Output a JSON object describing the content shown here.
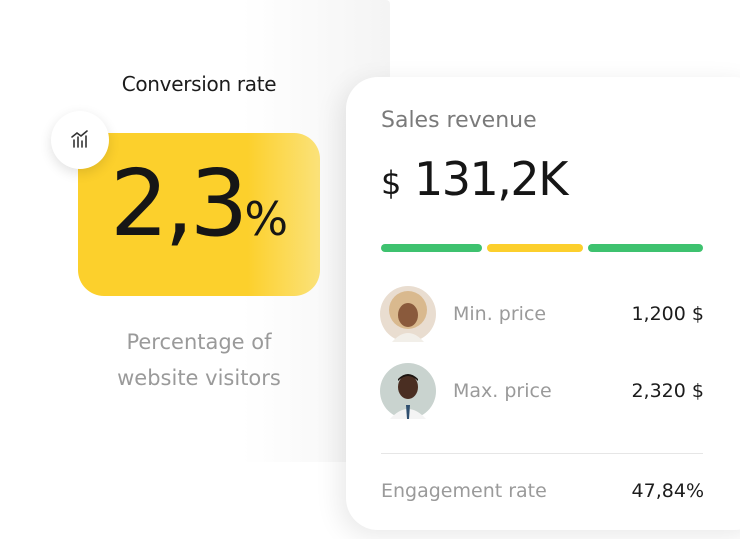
{
  "conversion_card": {
    "title": "Conversion rate",
    "value": "2,3",
    "unit": "%",
    "subtitle_lines": [
      "Percentage of",
      "website visitors"
    ]
  },
  "revenue_card": {
    "title": "Sales revenue",
    "currency": "$",
    "amount": "131,2K",
    "rows": [
      {
        "label": "Min. price",
        "value": "1,200 $"
      },
      {
        "label": "Max. price",
        "value": "2,320 $"
      }
    ],
    "engagement": {
      "label": "Engagement rate",
      "value": "47,84%"
    }
  }
}
